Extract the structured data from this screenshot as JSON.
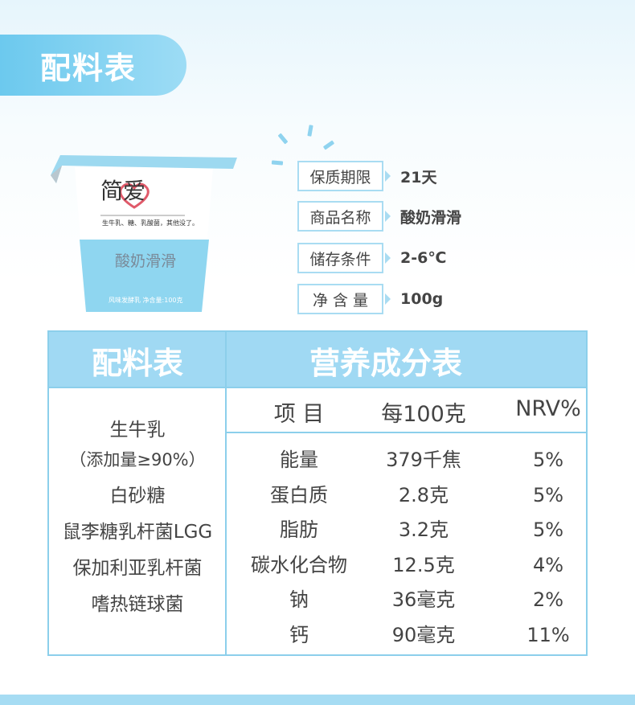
{
  "top_tab": {
    "title": "配料表"
  },
  "product": {
    "brand": "简爱",
    "slogan": "生牛乳、糖、乳酸菌，其他没了。",
    "name": "酸奶滑滑",
    "desc": "风味发酵乳 净含量:100克"
  },
  "info": [
    {
      "key": "保质期限",
      "value": "21天"
    },
    {
      "key": "商品名称",
      "value": "酸奶滑滑"
    },
    {
      "key": "储存条件",
      "value": "2-6℃"
    },
    {
      "key": "净 含 量",
      "value": "100g"
    }
  ],
  "table": {
    "ingredients_title": "配料表",
    "nutrition_title": "营养成分表",
    "ingredients": [
      "生牛乳",
      "（添加量≥90%）",
      "白砂糖",
      "鼠李糖乳杆菌LGG",
      "保加利亚乳杆菌",
      "嗜热链球菌"
    ],
    "columns": [
      "项 目",
      "每100克",
      "NRV%"
    ],
    "rows": [
      [
        "能量",
        "379千焦",
        "5%"
      ],
      [
        "蛋白质",
        "2.8克",
        "5%"
      ],
      [
        "脂肪",
        "3.2克",
        "5%"
      ],
      [
        "碳水化合物",
        "12.5克",
        "4%"
      ],
      [
        "钠",
        "36毫克",
        "2%"
      ],
      [
        "钙",
        "90毫克",
        "11%"
      ]
    ]
  },
  "colors": {
    "accent": "#8ccfeb",
    "header": "#a0d9f3",
    "tab": "#6cc9ee"
  }
}
